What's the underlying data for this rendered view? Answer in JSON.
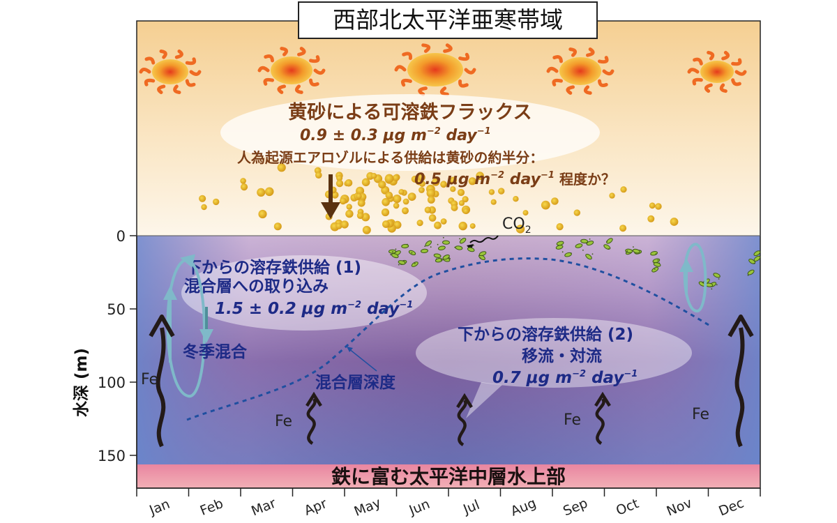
{
  "title": "西部北太平洋亜寒帯域",
  "yaxis": {
    "label": "水深 (m)",
    "ticks": [
      "0",
      "50",
      "100",
      "150"
    ]
  },
  "months": [
    "Jan",
    "Feb",
    "Mar",
    "Apr",
    "May",
    "Jun",
    "Jul",
    "Aug",
    "Sep",
    "Oct",
    "Nov",
    "Dec"
  ],
  "atmosphere": {
    "dust_title": "黄砂による可溶鉄フラックス",
    "dust_flux": "0.9 ± 0.3 μg m",
    "dust_flux_unit": "−2",
    "dust_flux_day": " day",
    "dust_flux_day_unit": "−1",
    "anthro_line": "人為起源エアロゾルによる供給は黄砂の約半分：",
    "anthro_flux": "0.5 μg m",
    "anthro_flux_unit": "−2",
    "anthro_flux_day": " day",
    "anthro_flux_day_unit": "−1",
    "anthro_suffix": " 程度か？",
    "co2": "CO",
    "co2_sub": "2"
  },
  "ocean": {
    "supply1_title": "下からの溶存鉄供給 (1)",
    "supply1_sub": "混合層への取り込み",
    "supply1_flux": "1.5 ± 0.2 μg m",
    "supply1_flux_unit": "−2",
    "supply1_flux_day": " day",
    "supply1_flux_day_unit": "−1",
    "winter_mixing": "冬季混合",
    "mixed_layer_depth": "混合層深度",
    "supply2_title": "下からの溶存鉄供給 (2)",
    "supply2_sub": "移流・対流",
    "supply2_flux": "0.7 μg m",
    "supply2_flux_unit": "−2",
    "supply2_flux_day": " day",
    "supply2_flux_day_unit": "−1",
    "fe": "Fe",
    "bottom_layer": "鉄に富む太平洋中層水上部"
  },
  "colors": {
    "atmosphere_top": "#f5cf92",
    "ocean_top": "#e9cfe4",
    "ocean_mid": "#7a5a9e",
    "ocean_deep": "#6b80c0",
    "bottom_layer": "#e07894",
    "label_brown": "#7a3d16",
    "label_blue": "#1d2a86",
    "mld_line": "#1f4fa0"
  }
}
